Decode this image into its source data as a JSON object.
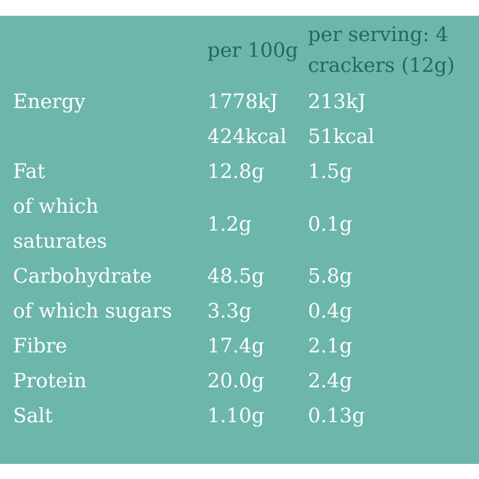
{
  "header": {
    "col_per_100g": "per 100g",
    "col_per_serving_line1": "per serving: 4",
    "col_per_serving_line2": "crackers (12g)"
  },
  "rows": [
    {
      "label": "Energy",
      "per_100g": "1778kJ",
      "per_serving": "213kJ"
    },
    {
      "label": "",
      "per_100g": "424kcal",
      "per_serving": "51kcal"
    },
    {
      "label": "Fat",
      "per_100g": "12.8g",
      "per_serving": "1.5g"
    },
    {
      "label_line1": "of which",
      "label_line2": "saturates",
      "per_100g": "1.2g",
      "per_serving": "0.1g"
    },
    {
      "label": "Carbohydrate",
      "per_100g": "48.5g",
      "per_serving": "5.8g"
    },
    {
      "label": "of which sugars",
      "per_100g": "3.3g",
      "per_serving": "0.4g"
    },
    {
      "label": "Fibre",
      "per_100g": "17.4g",
      "per_serving": "2.1g"
    },
    {
      "label": "Protein",
      "per_100g": "20.0g",
      "per_serving": "2.4g"
    },
    {
      "label": "Salt",
      "per_100g": "1.10g",
      "per_serving": "0.13g"
    }
  ]
}
